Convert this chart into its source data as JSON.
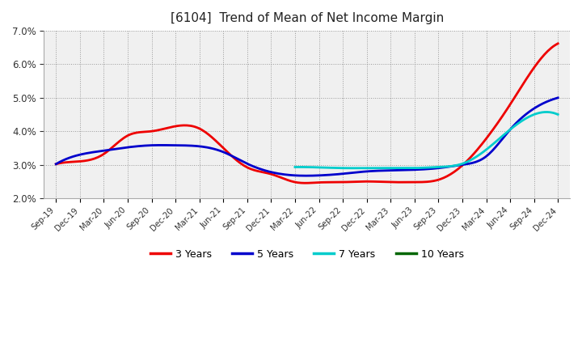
{
  "title": "[6104]  Trend of Mean of Net Income Margin",
  "background_color": "#ffffff",
  "chart_bg": "#f0f0f0",
  "grid_color": "#999999",
  "ylim": [
    0.02,
    0.07
  ],
  "yticks": [
    0.02,
    0.03,
    0.04,
    0.05,
    0.06,
    0.07
  ],
  "x_labels": [
    "Sep-19",
    "Dec-19",
    "Mar-20",
    "Jun-20",
    "Sep-20",
    "Dec-20",
    "Mar-21",
    "Jun-21",
    "Sep-21",
    "Dec-21",
    "Mar-22",
    "Jun-22",
    "Sep-22",
    "Dec-22",
    "Mar-23",
    "Jun-23",
    "Sep-23",
    "Dec-23",
    "Mar-24",
    "Jun-24",
    "Sep-24",
    "Dec-24"
  ],
  "y_3yr": [
    0.0302,
    0.031,
    0.0332,
    0.0387,
    0.04,
    0.0415,
    0.0408,
    0.035,
    0.0292,
    0.0272,
    0.0248,
    0.0247,
    0.0248,
    0.025,
    0.0248,
    0.0248,
    0.0255,
    0.0298,
    0.0378,
    0.048,
    0.059,
    0.0662
  ],
  "y_5yr_x": [
    0,
    1,
    2,
    3,
    4,
    5,
    6,
    7,
    8,
    9,
    10,
    11,
    12,
    13,
    14,
    15,
    16,
    17,
    18,
    19,
    20,
    21
  ],
  "y_5yr_v": [
    0.0302,
    0.033,
    0.0342,
    0.0352,
    0.0358,
    0.0358,
    0.0355,
    0.0338,
    0.0303,
    0.0278,
    0.0268,
    0.0268,
    0.0273,
    0.028,
    0.0283,
    0.0285,
    0.029,
    0.03,
    0.0325,
    0.0405,
    0.0468,
    0.05
  ],
  "y_7yr_x": [
    10,
    11,
    12,
    13,
    14,
    15,
    16,
    17,
    18,
    19,
    20,
    21
  ],
  "y_7yr_v": [
    0.0293,
    0.0292,
    0.029,
    0.029,
    0.029,
    0.029,
    0.0293,
    0.0303,
    0.0345,
    0.0405,
    0.045,
    0.045
  ],
  "color_3yr": "#ee0000",
  "color_5yr": "#0000cc",
  "color_7yr": "#00cccc",
  "color_10yr": "#006600",
  "legend_entries": [
    "3 Years",
    "5 Years",
    "7 Years",
    "10 Years"
  ],
  "legend_colors": [
    "#ee0000",
    "#0000cc",
    "#00cccc",
    "#006600"
  ]
}
